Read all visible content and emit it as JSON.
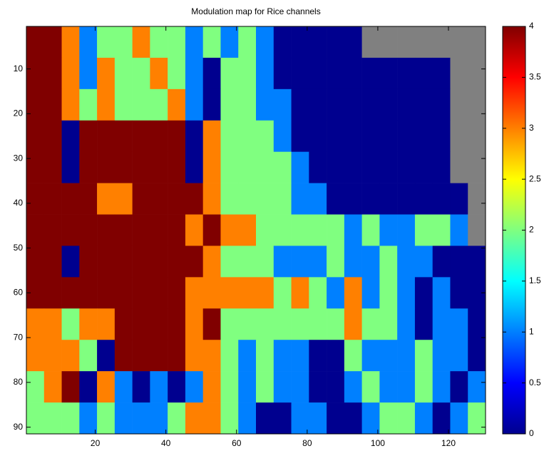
{
  "chart_data": {
    "type": "heatmap",
    "title": "Modulation map for Rice channels",
    "x_edges": [
      0.5,
      5.5,
      10.5,
      15.5,
      20.5,
      25.5,
      30.5,
      35.5,
      40.5,
      45.5,
      50.5,
      55.5,
      60.5,
      65.5,
      70.5,
      75.5,
      80.5,
      85.5,
      90.5,
      95.5,
      100.5,
      105.5,
      110.5,
      115.5,
      120.5,
      125.5,
      130.5
    ],
    "y_edges": [
      0.5,
      7.5,
      14.5,
      21.5,
      28.5,
      35.5,
      42.5,
      49.5,
      56.5,
      63.5,
      70.5,
      77.5,
      84.5,
      91.5
    ],
    "z": [
      [
        4,
        4,
        3,
        1,
        2,
        2,
        3,
        2,
        2,
        1,
        2,
        1,
        2,
        1,
        0,
        0,
        0,
        0,
        0,
        null,
        null,
        null,
        null,
        null,
        null,
        null
      ],
      [
        4,
        4,
        3,
        1,
        3,
        2,
        2,
        3,
        2,
        1,
        0,
        2,
        2,
        1,
        0,
        0,
        0,
        0,
        0,
        0,
        0,
        0,
        0,
        0,
        null,
        null
      ],
      [
        4,
        4,
        3,
        2,
        3,
        2,
        2,
        2,
        3,
        1,
        0,
        2,
        2,
        1,
        1,
        0,
        0,
        0,
        0,
        0,
        0,
        0,
        0,
        0,
        null,
        null
      ],
      [
        4,
        4,
        0,
        4,
        4,
        4,
        4,
        4,
        4,
        0,
        3,
        2,
        2,
        2,
        1,
        0,
        0,
        0,
        0,
        0,
        0,
        0,
        0,
        0,
        null,
        null
      ],
      [
        4,
        4,
        0,
        4,
        4,
        4,
        4,
        4,
        4,
        0,
        3,
        2,
        2,
        2,
        2,
        1,
        0,
        0,
        0,
        0,
        0,
        0,
        0,
        0,
        null,
        null
      ],
      [
        4,
        4,
        4,
        4,
        3,
        3,
        4,
        4,
        4,
        4,
        3,
        2,
        2,
        2,
        2,
        1,
        1,
        0,
        0,
        0,
        0,
        0,
        0,
        0,
        0,
        null
      ],
      [
        4,
        4,
        4,
        4,
        4,
        4,
        4,
        4,
        4,
        3,
        4,
        3,
        3,
        2,
        2,
        2,
        2,
        2,
        1,
        2,
        1,
        1,
        2,
        2,
        1,
        null
      ],
      [
        4,
        4,
        0,
        4,
        4,
        4,
        4,
        4,
        4,
        4,
        3,
        2,
        2,
        2,
        1,
        1,
        1,
        2,
        1,
        1,
        2,
        1,
        1,
        0,
        0,
        0
      ],
      [
        4,
        4,
        4,
        4,
        4,
        4,
        4,
        4,
        4,
        3,
        3,
        3,
        3,
        3,
        2,
        3,
        2,
        1,
        3,
        1,
        2,
        1,
        0,
        1,
        0,
        0
      ],
      [
        3,
        3,
        2,
        3,
        3,
        4,
        4,
        4,
        4,
        3,
        4,
        2,
        2,
        2,
        2,
        2,
        2,
        2,
        3,
        2,
        2,
        1,
        0,
        1,
        1,
        0
      ],
      [
        3,
        3,
        3,
        2,
        0,
        4,
        4,
        4,
        4,
        3,
        3,
        2,
        1,
        2,
        1,
        1,
        0,
        0,
        2,
        1,
        1,
        1,
        2,
        1,
        1,
        0
      ],
      [
        2,
        3,
        4,
        0,
        3,
        1,
        0,
        1,
        0,
        1,
        3,
        2,
        1,
        2,
        1,
        1,
        0,
        0,
        1,
        2,
        1,
        1,
        2,
        1,
        0,
        1
      ],
      [
        2,
        2,
        2,
        1,
        2,
        1,
        1,
        1,
        2,
        3,
        3,
        2,
        1,
        0,
        0,
        1,
        1,
        0,
        0,
        1,
        2,
        2,
        1,
        0,
        1,
        2
      ]
    ],
    "xlim": [
      0.5,
      130.5
    ],
    "ylim": [
      0.5,
      91.5
    ],
    "y_reversed": true,
    "xticks": [
      20,
      40,
      60,
      80,
      100,
      120
    ],
    "yticks": [
      10,
      20,
      30,
      40,
      50,
      60,
      70,
      80,
      90
    ],
    "clim": [
      0,
      4
    ],
    "cticks": [
      0,
      0.5,
      1,
      1.5,
      2,
      2.5,
      3,
      3.5,
      4
    ],
    "colormap": [
      "#00008f",
      "#0000ff",
      "#00ffff",
      "#ffff00",
      "#ff0000",
      "#800000"
    ],
    "null_color": "#808080"
  }
}
